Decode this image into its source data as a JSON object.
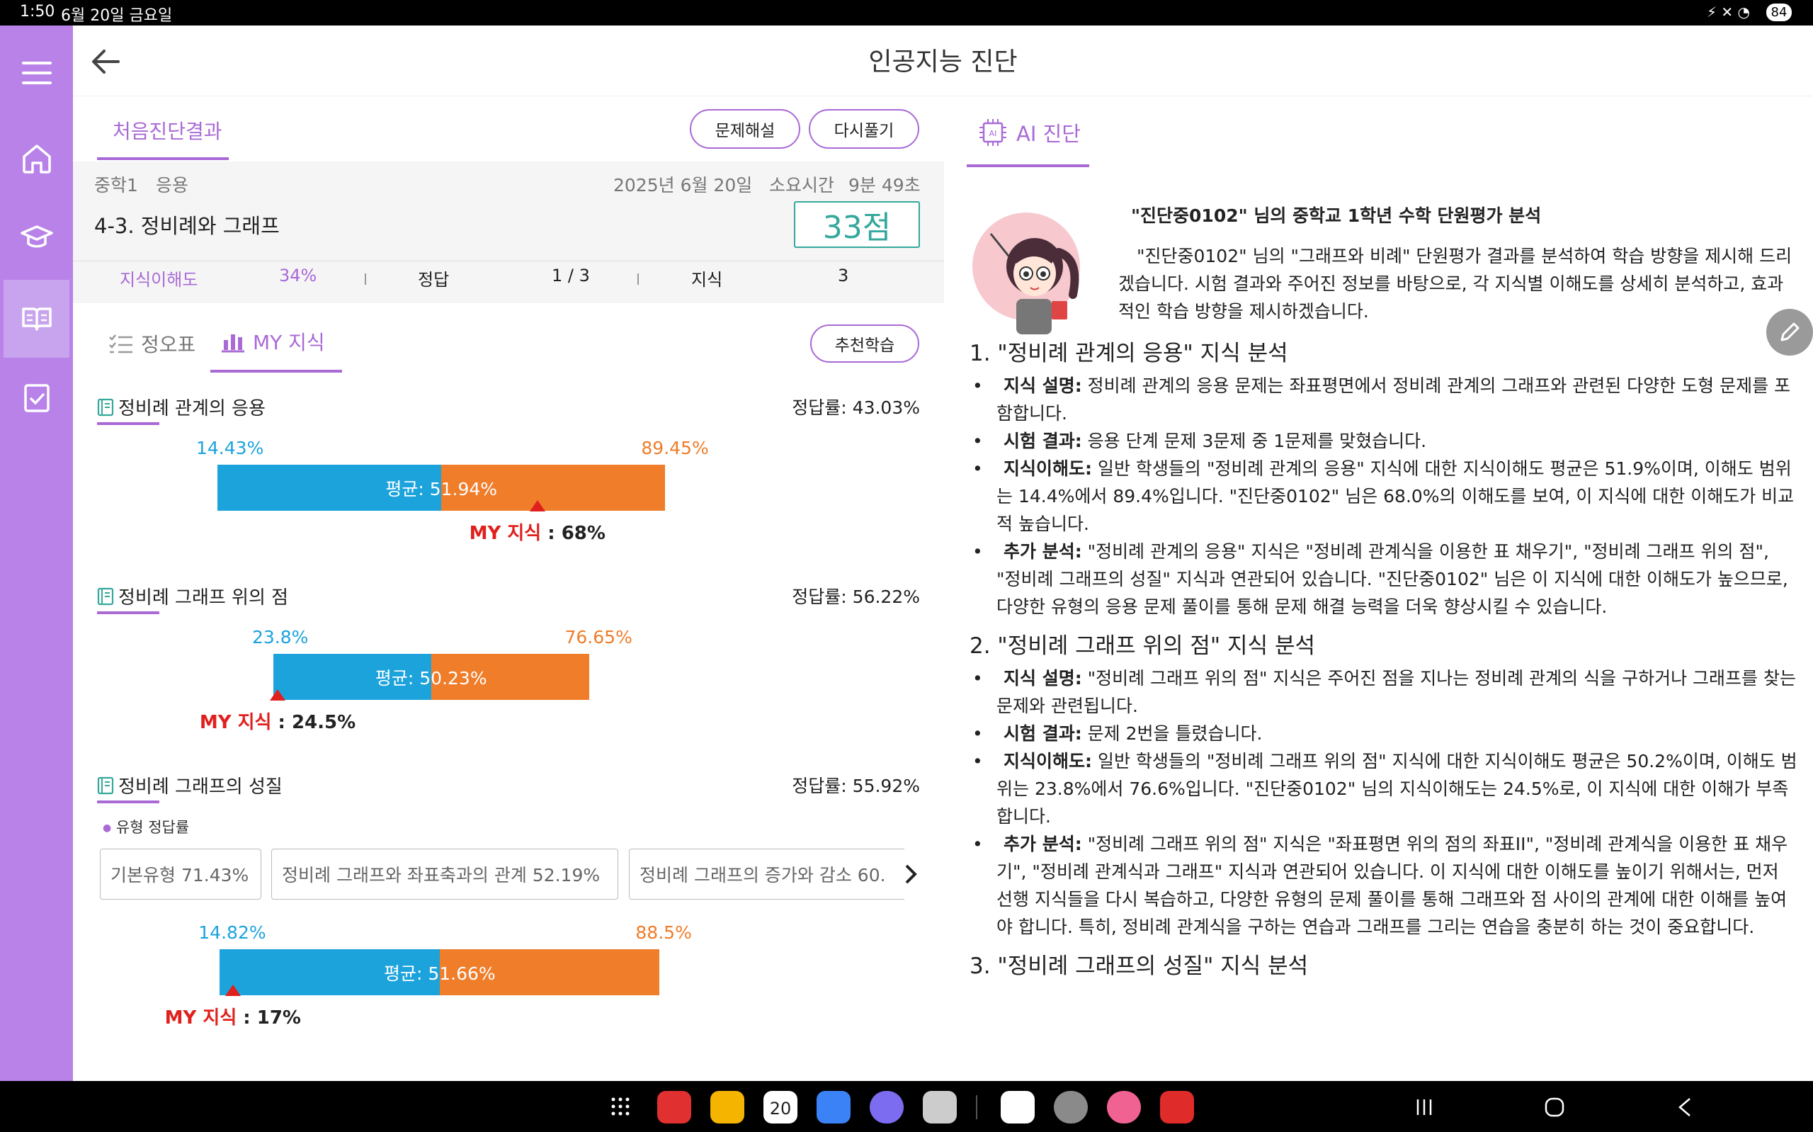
{
  "status_bar": {
    "time": "1:50",
    "date": "6월 20일 금요일",
    "battery": "84"
  },
  "header": {
    "title": "인공지능 진단",
    "back_icon": "arrow-left-icon"
  },
  "sidebar": {
    "items": [
      "menu-icon",
      "home-icon",
      "graduation-cap-icon",
      "book-icon",
      "checklist-icon"
    ],
    "active_index": 3,
    "color": "#b882e8"
  },
  "left_panel": {
    "tab_label": "처음진단결과",
    "btn_explain": "문제해설",
    "btn_retry": "다시풀기",
    "grade": "중학1",
    "level": "응용",
    "date": "2025년 6월 20일",
    "time_label": "소요시간",
    "time_value": "9분 49초",
    "unit_title": "4-3. 정비례와 그래프",
    "score": "33점",
    "stats": {
      "understanding_label": "지식이해도",
      "understanding_value": "34%",
      "correct_label": "정답",
      "correct_value": "1 / 3",
      "knowledge_label": "지식",
      "knowledge_value": "3"
    },
    "subtab_table": "정오표",
    "subtab_my": "MY 지식",
    "btn_recommend": "추천학습",
    "sections": [
      {
        "title": "정비례 관계의 응용",
        "rate": "정답률: 43.03%",
        "min": "14.43%",
        "max": "89.45%",
        "avg_label": "평균: 51.94%",
        "avg_pct": 51.94,
        "min_pct": 14.43,
        "max_pct": 89.45,
        "my_label": "MY 지식",
        "my_value": " : 68%",
        "my_pct": 68
      },
      {
        "title": "정비례 그래프 위의 점",
        "rate": "정답률: 56.22%",
        "min": "23.8%",
        "max": "76.65%",
        "avg_label": "평균: 50.23%",
        "avg_pct": 50.23,
        "min_pct": 23.8,
        "max_pct": 76.65,
        "my_label": "MY 지식",
        "my_value": " : 24.5%",
        "my_pct": 24.5
      },
      {
        "title": "정비례 그래프의 성질",
        "rate": "정답률: 55.92%",
        "min": "14.82%",
        "max": "88.5%",
        "avg_label": "평균: 51.66%",
        "avg_pct": 51.66,
        "min_pct": 14.82,
        "max_pct": 88.5,
        "my_label": "MY 지식",
        "my_value": " : 17%",
        "my_pct": 17
      }
    ],
    "type_rate_label": "유형 정답률",
    "type_chips": [
      "기본유형 71.43%",
      "정비례 그래프와 좌표축과의 관계 52.19%",
      "정비례 그래프의 증가와 감소 60."
    ],
    "colors": {
      "blue": "#1ca3dc",
      "orange": "#ef7d2a",
      "red": "#e0201d",
      "purple": "#a96ad6"
    }
  },
  "right_panel": {
    "tab_label": "AI 진단",
    "report_title": "\"진단중0102\" 님의 중학교 1학년 수학 단원평가 분석",
    "intro": "\"진단중0102\" 님의 \"그래프와 비례\" 단원평가 결과를 분석하여 학습 방향을 제시해 드리겠습니다. 시험 결과와 주어진 정보를 바탕으로, 각 지식별 이해도를 상세히 분석하고, 효과적인 학습 방향을 제시하겠습니다.",
    "sections": [
      {
        "heading": "1. \"정비례 관계의 응용\" 지식 분석",
        "items": [
          {
            "label": "지식 설명:",
            "text": " 정비례 관계의 응용 문제는 좌표평면에서 정비례 관계의 그래프와 관련된 다양한 도형 문제를 포함합니다."
          },
          {
            "label": "시험 결과:",
            "text": " 응용 단계 문제 3문제 중 1문제를 맞혔습니다."
          },
          {
            "label": "지식이해도:",
            "text": " 일반 학생들의 \"정비례 관계의 응용\" 지식에 대한 지식이해도 평균은 51.9%이며, 이해도 범위는 14.4%에서 89.4%입니다. \"진단중0102\" 님은 68.0%의 이해도를 보여, 이 지식에 대한 이해도가 비교적 높습니다."
          },
          {
            "label": "추가 분석:",
            "text": " \"정비례 관계의 응용\" 지식은 \"정비례 관계식을 이용한 표 채우기\", \"정비례 그래프 위의 점\", \"정비례 그래프의 성질\" 지식과 연관되어 있습니다. \"진단중0102\" 님은 이 지식에 대한 이해도가 높으므로, 다양한 유형의 응용 문제 풀이를 통해 문제 해결 능력을 더욱 향상시킬 수 있습니다."
          }
        ]
      },
      {
        "heading": "2. \"정비례 그래프 위의 점\" 지식 분석",
        "items": [
          {
            "label": "지식 설명:",
            "text": " \"정비례 그래프 위의 점\" 지식은 주어진 점을 지나는 정비례 관계의 식을 구하거나 그래프를 찾는 문제와 관련됩니다."
          },
          {
            "label": "시험 결과:",
            "text": " 문제 2번을 틀렸습니다."
          },
          {
            "label": "지식이해도:",
            "text": " 일반 학생들의 \"정비례 그래프 위의 점\" 지식에 대한 지식이해도 평균은 50.2%이며, 이해도 범위는 23.8%에서 76.6%입니다. \"진단중0102\" 님의 지식이해도는 24.5%로, 이 지식에 대한 이해가 부족합니다."
          },
          {
            "label": "추가 분석:",
            "text": " \"정비례 그래프 위의 점\" 지식은 \"좌표평면 위의 점의 좌표II\", \"정비례 관계식을 이용한 표 채우기\", \"정비례 관계식과 그래프\" 지식과 연관되어 있습니다. 이 지식에 대한 이해도를 높이기 위해서는, 먼저 선행 지식들을 다시 복습하고, 다양한 유형의 문제 풀이를 통해 그래프와 점 사이의 관계에 대한 이해를 높여야 합니다. 특히, 정비례 관계식을 구하는 연습과 그래프를 그리는 연습을 충분히 하는 것이 중요합니다."
          }
        ]
      }
    ],
    "cut_heading": "3. \"정비례 그래프의 성질\" 지식 분석"
  }
}
